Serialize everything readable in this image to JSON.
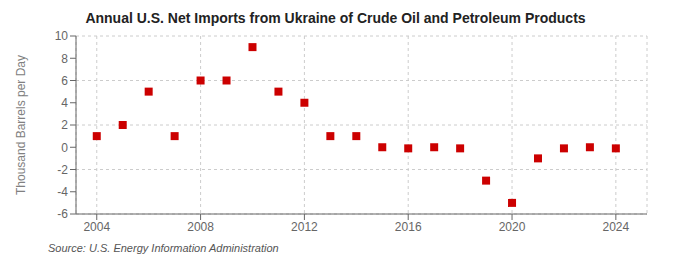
{
  "chart_data": {
    "type": "scatter",
    "title": "Annual U.S. Net Imports from Ukraine of Crude Oil and Petroleum Products",
    "ylabel": "Thousand Barrels per Day",
    "source": "Source: U.S. Energy Information Administration",
    "x": [
      2004,
      2005,
      2006,
      2007,
      2008,
      2009,
      2010,
      2011,
      2012,
      2013,
      2014,
      2015,
      2016,
      2017,
      2018,
      2019,
      2020,
      2021,
      2022,
      2023,
      2024
    ],
    "values": [
      1,
      2,
      5,
      1,
      6,
      6,
      9,
      5,
      4,
      1,
      1,
      0,
      -0.1,
      0,
      -0.1,
      -3,
      -5,
      -1,
      -0.1,
      0,
      -0.1
    ],
    "color": "#cc0000",
    "marker": "square",
    "xlim": [
      2003.2,
      2025.2
    ],
    "xticks": [
      2004,
      2008,
      2012,
      2016,
      2020,
      2024
    ],
    "ylim": [
      -6,
      10
    ],
    "yticks": [
      -6,
      -4,
      -2,
      0,
      2,
      4,
      6,
      8,
      10
    ],
    "grid": true
  }
}
